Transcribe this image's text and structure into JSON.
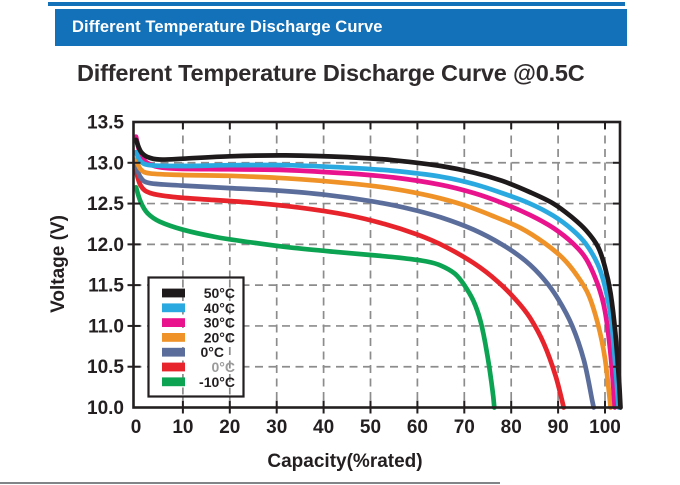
{
  "banner": {
    "label": "Different Temperature Discharge Curve",
    "bg_color": "#1271b8",
    "text_color": "#ffffff"
  },
  "page_title": "Different Temperature Discharge Curve @0.5C",
  "chart_data": {
    "type": "line",
    "title": "Different Temperature Discharge Curve @0.5C",
    "xlabel": "Capacity(%rated)",
    "ylabel": "Voltage (V)",
    "xlim": [
      0,
      103.5
    ],
    "ylim": [
      10.0,
      13.5
    ],
    "x_ticks": [
      0,
      10,
      20,
      30,
      40,
      50,
      60,
      70,
      80,
      90,
      100
    ],
    "y_ticks": [
      13.5,
      13.0,
      12.5,
      12.0,
      11.5,
      11.0,
      10.5,
      10.0
    ],
    "y_tick_labels": [
      "13.5",
      "13.0",
      "12.5",
      "12.0",
      "11.5",
      "11.0",
      "10.5",
      "10.0"
    ],
    "grid": "dashed",
    "grid_color": "#8c8c8c",
    "axis_color": "#231f20",
    "legend_position": "lower-left",
    "series": [
      {
        "name": "50°C",
        "color": "#1e1a1b",
        "label_color": "#231f20",
        "points": [
          [
            0,
            13.28
          ],
          [
            1,
            13.14
          ],
          [
            2.5,
            13.07
          ],
          [
            5,
            13.04
          ],
          [
            10,
            13.05
          ],
          [
            20,
            13.08
          ],
          [
            32,
            13.09
          ],
          [
            45,
            13.07
          ],
          [
            55,
            13.03
          ],
          [
            65,
            12.96
          ],
          [
            72,
            12.88
          ],
          [
            78,
            12.78
          ],
          [
            84,
            12.64
          ],
          [
            89,
            12.5
          ],
          [
            93,
            12.33
          ],
          [
            96,
            12.17
          ],
          [
            98.5,
            11.97
          ],
          [
            100,
            11.72
          ],
          [
            101.2,
            11.4
          ],
          [
            102.2,
            10.92
          ],
          [
            103,
            10.32
          ],
          [
            103.3,
            10.0
          ]
        ]
      },
      {
        "name": "40°C",
        "color": "#2aa9e1",
        "label_color": "#231f20",
        "points": [
          [
            0,
            13.13
          ],
          [
            1,
            13.02
          ],
          [
            3,
            12.97
          ],
          [
            10,
            12.96
          ],
          [
            20,
            12.97
          ],
          [
            32,
            12.97
          ],
          [
            45,
            12.94
          ],
          [
            55,
            12.9
          ],
          [
            65,
            12.83
          ],
          [
            72,
            12.74
          ],
          [
            78,
            12.63
          ],
          [
            84,
            12.5
          ],
          [
            89,
            12.35
          ],
          [
            93,
            12.18
          ],
          [
            96,
            12.0
          ],
          [
            98.5,
            11.75
          ],
          [
            100,
            11.48
          ],
          [
            101.3,
            11.08
          ],
          [
            102.3,
            10.45
          ],
          [
            102.9,
            10.0
          ]
        ]
      },
      {
        "name": "30°C",
        "color": "#e9138d",
        "label_color": "#231f20",
        "points": [
          [
            0,
            13.32
          ],
          [
            1,
            13.1
          ],
          [
            3,
            12.98
          ],
          [
            8,
            12.93
          ],
          [
            20,
            12.92
          ],
          [
            32,
            12.91
          ],
          [
            45,
            12.87
          ],
          [
            55,
            12.82
          ],
          [
            65,
            12.73
          ],
          [
            72,
            12.63
          ],
          [
            78,
            12.51
          ],
          [
            84,
            12.36
          ],
          [
            89,
            12.2
          ],
          [
            93,
            12.02
          ],
          [
            96,
            11.82
          ],
          [
            98.5,
            11.5
          ],
          [
            100,
            11.18
          ],
          [
            101.2,
            10.65
          ],
          [
            102.1,
            10.0
          ]
        ]
      },
      {
        "name": "20°C",
        "color": "#ef9227",
        "label_color": "#231f20",
        "points": [
          [
            0,
            13.04
          ],
          [
            1,
            12.92
          ],
          [
            3,
            12.87
          ],
          [
            10,
            12.85
          ],
          [
            20,
            12.84
          ],
          [
            32,
            12.81
          ],
          [
            45,
            12.75
          ],
          [
            55,
            12.68
          ],
          [
            63,
            12.59
          ],
          [
            70,
            12.48
          ],
          [
            76,
            12.35
          ],
          [
            82,
            12.2
          ],
          [
            87,
            12.02
          ],
          [
            91,
            11.83
          ],
          [
            94,
            11.62
          ],
          [
            96.5,
            11.38
          ],
          [
            98.5,
            11.02
          ],
          [
            100,
            10.6
          ],
          [
            101.2,
            10.0
          ]
        ]
      },
      {
        "name": "0°C",
        "color": "#5b6d9b",
        "label_color": "#231f20",
        "points": [
          [
            0,
            12.97
          ],
          [
            1,
            12.82
          ],
          [
            3,
            12.75
          ],
          [
            10,
            12.72
          ],
          [
            20,
            12.69
          ],
          [
            30,
            12.66
          ],
          [
            40,
            12.61
          ],
          [
            50,
            12.53
          ],
          [
            58,
            12.44
          ],
          [
            65,
            12.33
          ],
          [
            72,
            12.18
          ],
          [
            78,
            12.0
          ],
          [
            83,
            11.8
          ],
          [
            87,
            11.57
          ],
          [
            90,
            11.33
          ],
          [
            93,
            11.0
          ],
          [
            95.5,
            10.58
          ],
          [
            97.3,
            10.08
          ],
          [
            97.6,
            10.0
          ]
        ]
      },
      {
        "name": "0°C",
        "color": "#e7242b",
        "label_color": "#9b9b9b",
        "points": [
          [
            0,
            12.9
          ],
          [
            1,
            12.72
          ],
          [
            3,
            12.63
          ],
          [
            8,
            12.58
          ],
          [
            15,
            12.55
          ],
          [
            25,
            12.51
          ],
          [
            35,
            12.45
          ],
          [
            45,
            12.36
          ],
          [
            53,
            12.25
          ],
          [
            60,
            12.12
          ],
          [
            66,
            11.97
          ],
          [
            72,
            11.77
          ],
          [
            77,
            11.55
          ],
          [
            81,
            11.32
          ],
          [
            84,
            11.1
          ],
          [
            87,
            10.78
          ],
          [
            89.5,
            10.38
          ],
          [
            91.2,
            10.0
          ]
        ]
      },
      {
        "name": "-10°C",
        "color": "#0ca453",
        "label_color": "#231f20",
        "points": [
          [
            0,
            12.7
          ],
          [
            1,
            12.52
          ],
          [
            2.5,
            12.38
          ],
          [
            5,
            12.28
          ],
          [
            10,
            12.18
          ],
          [
            17,
            12.09
          ],
          [
            25,
            12.02
          ],
          [
            33,
            11.96
          ],
          [
            42,
            11.91
          ],
          [
            50,
            11.87
          ],
          [
            57,
            11.83
          ],
          [
            62,
            11.79
          ],
          [
            65,
            11.74
          ],
          [
            68,
            11.64
          ],
          [
            70,
            11.5
          ],
          [
            72,
            11.3
          ],
          [
            73.5,
            11.05
          ],
          [
            74.8,
            10.68
          ],
          [
            76,
            10.22
          ],
          [
            76.4,
            10.0
          ]
        ]
      }
    ]
  }
}
